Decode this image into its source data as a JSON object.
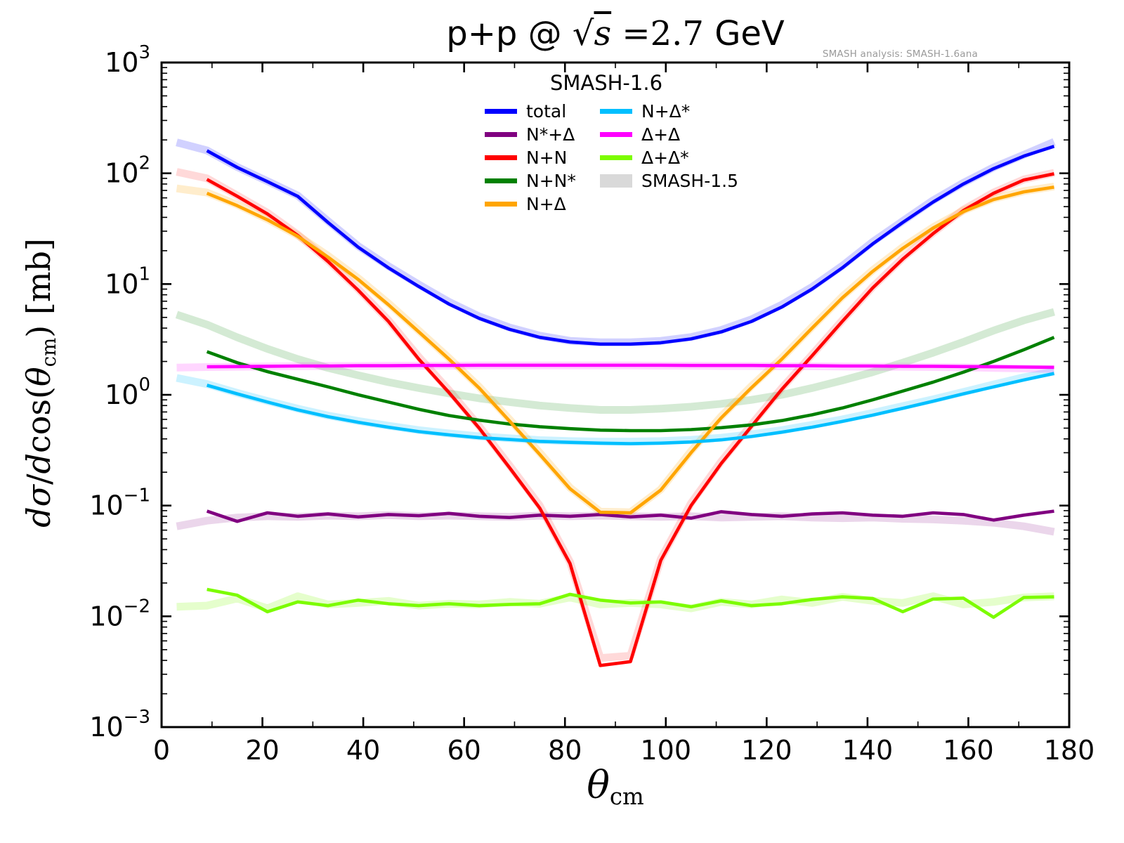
{
  "title_parts": [
    {
      "t": "p+p @ ",
      "cls": "sans"
    },
    {
      "t": "√",
      "cls": "rad"
    },
    {
      "t": "s",
      "cls": "radicand"
    },
    {
      "t": " =2.7 ",
      "cls": "rm"
    },
    {
      "t": "GeV",
      "cls": "sans"
    }
  ],
  "watermark": "SMASH analysis: SMASH-1.6ana",
  "axes": {
    "xlabel_parts": [
      {
        "t": "θ",
        "cls": "it"
      },
      {
        "t": "cm",
        "cls": "sub"
      }
    ],
    "ylabel_parts": [
      {
        "t": "d",
        "cls": "it"
      },
      {
        "t": "σ",
        "cls": "it"
      },
      {
        "t": "/",
        "cls": "rm"
      },
      {
        "t": "d",
        "cls": "it"
      },
      {
        "t": "cos(",
        "cls": "rm"
      },
      {
        "t": "θ",
        "cls": "it"
      },
      {
        "t": "cm",
        "cls": "sub"
      },
      {
        "t": ") [mb]",
        "cls": "rm"
      }
    ],
    "x_major_ticks": [
      0,
      20,
      40,
      60,
      80,
      100,
      120,
      140,
      160,
      180
    ],
    "x_minor_ticks": [
      10,
      30,
      50,
      70,
      90,
      110,
      130,
      150,
      170
    ],
    "y_tick_exponents": [
      3,
      2,
      1,
      0,
      -1,
      -2,
      -3
    ],
    "xlim": [
      0,
      180
    ],
    "ylim_exp": [
      -3,
      3
    ],
    "scale_y": "log",
    "grid": false
  },
  "legend": {
    "title": "SMASH-1.6",
    "entries": [
      {
        "name": "total",
        "label": "total",
        "color": "#0000ff",
        "col": 1,
        "type": "line"
      },
      {
        "name": "n-star-delta",
        "label": "N*+Δ",
        "color": "#800080",
        "col": 1,
        "type": "line"
      },
      {
        "name": "n-n",
        "label": "N+N",
        "color": "#ff0000",
        "col": 1,
        "type": "line"
      },
      {
        "name": "n-n-star",
        "label": "N+N*",
        "color": "#008000",
        "col": 1,
        "type": "line"
      },
      {
        "name": "n-delta",
        "label": "N+Δ",
        "color": "#ffa500",
        "col": 1,
        "type": "line"
      },
      {
        "name": "n-delta-star",
        "label": "N+Δ*",
        "color": "#00bfff",
        "col": 2,
        "type": "line"
      },
      {
        "name": "delta-delta",
        "label": "Δ+Δ",
        "color": "#ff00ff",
        "col": 2,
        "type": "line"
      },
      {
        "name": "delta-delta-star",
        "label": "Δ+Δ*",
        "color": "#7cfc00",
        "col": 2,
        "type": "line"
      },
      {
        "name": "smash-1-5",
        "label": "SMASH-1.5",
        "color": "#d9d9d9",
        "col": 2,
        "type": "patch"
      }
    ]
  },
  "chart_data": {
    "type": "line",
    "title": "p+p @ sqrt(s)=2.7 GeV",
    "xlabel": "theta_cm [deg]",
    "ylabel": "dsigma/dcos(theta_cm) [mb]",
    "x_axis": {
      "min": 0,
      "max": 180,
      "major_step": 20,
      "minor_step": 10
    },
    "y_axis": {
      "scale": "log",
      "min": 0.001,
      "max": 1000
    },
    "x_smash16": [
      9,
      15,
      21,
      27,
      33,
      39,
      45,
      51,
      57,
      63,
      69,
      75,
      81,
      87,
      93,
      99,
      105,
      111,
      117,
      123,
      129,
      135,
      141,
      147,
      153,
      159,
      165,
      171,
      177
    ],
    "x_smash15": [
      3,
      9,
      15,
      21,
      27,
      33,
      39,
      45,
      51,
      57,
      63,
      69,
      75,
      81,
      87,
      93,
      99,
      105,
      111,
      117,
      123,
      129,
      135,
      141,
      147,
      153,
      159,
      165,
      171,
      177
    ],
    "series": [
      {
        "name": "total",
        "label": "total",
        "color": "#0000ff",
        "values": [
          160,
          113,
          84,
          62,
          36,
          21.5,
          14,
          9.5,
          6.6,
          4.9,
          3.9,
          3.3,
          3.0,
          2.87,
          2.87,
          2.95,
          3.2,
          3.7,
          4.6,
          6.2,
          9.0,
          14,
          23,
          36,
          55,
          80,
          110,
          143,
          175
        ]
      },
      {
        "name": "n-star-delta",
        "label": "N*+Δ",
        "color": "#800080",
        "values": [
          0.089,
          0.072,
          0.086,
          0.08,
          0.084,
          0.079,
          0.083,
          0.081,
          0.085,
          0.08,
          0.078,
          0.082,
          0.08,
          0.083,
          0.079,
          0.082,
          0.077,
          0.088,
          0.083,
          0.08,
          0.084,
          0.086,
          0.082,
          0.08,
          0.086,
          0.083,
          0.074,
          0.082,
          0.089
        ]
      },
      {
        "name": "n-n",
        "label": "N+N",
        "color": "#ff0000",
        "values": [
          88,
          62,
          43,
          27.5,
          16,
          8.8,
          4.6,
          2.1,
          1.05,
          0.5,
          0.22,
          0.095,
          0.03,
          0.0036,
          0.0039,
          0.032,
          0.1,
          0.24,
          0.52,
          1.12,
          2.25,
          4.6,
          9.2,
          16.8,
          28.5,
          46,
          66,
          87,
          99
        ]
      },
      {
        "name": "n-n-star",
        "label": "N+N*",
        "color": "#008000",
        "values": [
          2.45,
          1.95,
          1.62,
          1.38,
          1.18,
          1.0,
          0.86,
          0.74,
          0.65,
          0.59,
          0.545,
          0.515,
          0.495,
          0.48,
          0.475,
          0.475,
          0.485,
          0.505,
          0.535,
          0.585,
          0.66,
          0.76,
          0.9,
          1.08,
          1.3,
          1.6,
          2.0,
          2.55,
          3.3
        ]
      },
      {
        "name": "n-delta",
        "label": "N+Δ",
        "color": "#ffa500",
        "values": [
          66,
          51,
          38,
          27,
          17.5,
          11,
          6.5,
          3.7,
          2.1,
          1.15,
          0.58,
          0.29,
          0.142,
          0.087,
          0.086,
          0.138,
          0.3,
          0.62,
          1.16,
          2.1,
          4.0,
          7.5,
          13,
          21,
          32,
          45,
          58,
          68,
          75
        ]
      },
      {
        "name": "n-delta-star",
        "label": "N+Δ*",
        "color": "#00bfff",
        "values": [
          1.22,
          1.02,
          0.86,
          0.73,
          0.635,
          0.565,
          0.51,
          0.465,
          0.435,
          0.41,
          0.395,
          0.38,
          0.372,
          0.366,
          0.362,
          0.366,
          0.375,
          0.392,
          0.42,
          0.46,
          0.51,
          0.575,
          0.655,
          0.755,
          0.875,
          1.02,
          1.18,
          1.36,
          1.56
        ]
      },
      {
        "name": "delta-delta",
        "label": "Δ+Δ",
        "color": "#ff00ff",
        "values": [
          1.79,
          1.8,
          1.81,
          1.82,
          1.82,
          1.83,
          1.83,
          1.84,
          1.84,
          1.85,
          1.85,
          1.85,
          1.85,
          1.85,
          1.85,
          1.85,
          1.84,
          1.84,
          1.84,
          1.83,
          1.83,
          1.82,
          1.82,
          1.81,
          1.81,
          1.8,
          1.79,
          1.78,
          1.77
        ]
      },
      {
        "name": "delta-delta-star",
        "label": "Δ+Δ*",
        "color": "#7cfc00",
        "values": [
          0.0175,
          0.0155,
          0.011,
          0.0135,
          0.0125,
          0.014,
          0.013,
          0.0125,
          0.013,
          0.0125,
          0.0128,
          0.013,
          0.0158,
          0.014,
          0.0132,
          0.0135,
          0.0122,
          0.0138,
          0.0125,
          0.013,
          0.0142,
          0.015,
          0.0145,
          0.011,
          0.0143,
          0.0146,
          0.0098,
          0.0148,
          0.015
        ]
      }
    ],
    "bands": [
      {
        "name": "total",
        "label": "total SMASH-1.5",
        "color": "rgba(0,0,255,0.18)",
        "values": [
          190,
          161,
          114,
          85,
          63,
          37,
          22,
          14.5,
          9.9,
          6.9,
          5.1,
          4.05,
          3.42,
          3.07,
          2.98,
          2.98,
          3.07,
          3.32,
          3.85,
          4.8,
          6.5,
          9.4,
          14.6,
          24,
          37,
          57,
          82,
          113,
          147,
          192
        ]
      },
      {
        "name": "n-star-delta",
        "label": "N*+Δ SMASH-1.5",
        "color": "rgba(128,0,128,0.16)",
        "values": [
          0.065,
          0.073,
          0.078,
          0.08,
          0.079,
          0.081,
          0.08,
          0.082,
          0.08,
          0.081,
          0.08,
          0.079,
          0.081,
          0.08,
          0.081,
          0.08,
          0.079,
          0.08,
          0.078,
          0.079,
          0.08,
          0.078,
          0.077,
          0.078,
          0.076,
          0.075,
          0.073,
          0.07,
          0.065,
          0.058
        ]
      },
      {
        "name": "n-n",
        "label": "N+N SMASH-1.5",
        "color": "rgba(255,0,0,0.15)",
        "values": [
          103,
          90,
          63,
          44,
          28,
          16.3,
          9.0,
          4.7,
          2.2,
          1.1,
          0.52,
          0.23,
          0.1,
          0.031,
          0.0042,
          0.0044,
          0.033,
          0.105,
          0.25,
          0.54,
          1.15,
          2.3,
          4.7,
          9.4,
          17.2,
          29,
          47,
          67,
          88,
          101
        ]
      },
      {
        "name": "n-n-star",
        "label": "N+N* SMASH-1.5",
        "color": "rgba(0,128,0,0.17)",
        "values": [
          5.3,
          4.3,
          3.3,
          2.6,
          2.1,
          1.75,
          1.5,
          1.3,
          1.15,
          1.03,
          0.93,
          0.86,
          0.8,
          0.76,
          0.73,
          0.73,
          0.75,
          0.78,
          0.83,
          0.9,
          1.0,
          1.15,
          1.35,
          1.6,
          1.95,
          2.4,
          3.0,
          3.8,
          4.7,
          5.6
        ]
      },
      {
        "name": "n-delta",
        "label": "N+Δ SMASH-1.5",
        "color": "rgba(255,165,0,0.2)",
        "values": [
          73,
          67,
          52,
          38.5,
          27.5,
          18,
          11.3,
          6.7,
          3.8,
          2.15,
          1.18,
          0.6,
          0.3,
          0.145,
          0.088,
          0.087,
          0.14,
          0.31,
          0.64,
          1.2,
          2.15,
          4.1,
          7.7,
          13.3,
          21.5,
          32.5,
          46,
          59,
          69,
          76
        ]
      },
      {
        "name": "n-delta-star",
        "label": "N+Δ* SMASH-1.5",
        "color": "rgba(0,191,255,0.2)",
        "values": [
          1.42,
          1.25,
          1.04,
          0.88,
          0.75,
          0.65,
          0.58,
          0.525,
          0.48,
          0.448,
          0.422,
          0.405,
          0.39,
          0.382,
          0.378,
          0.378,
          0.382,
          0.392,
          0.41,
          0.44,
          0.48,
          0.535,
          0.6,
          0.685,
          0.79,
          0.91,
          1.06,
          1.24,
          1.44,
          1.62
        ]
      },
      {
        "name": "delta-delta",
        "label": "Δ+Δ SMASH-1.5",
        "color": "rgba(255,0,255,0.16)",
        "values": [
          1.76,
          1.78,
          1.79,
          1.8,
          1.81,
          1.82,
          1.82,
          1.83,
          1.83,
          1.83,
          1.84,
          1.84,
          1.84,
          1.84,
          1.84,
          1.84,
          1.83,
          1.83,
          1.82,
          1.82,
          1.81,
          1.81,
          1.8,
          1.79,
          1.79,
          1.78,
          1.77,
          1.75,
          1.73,
          1.71
        ]
      },
      {
        "name": "delta-delta-star",
        "label": "Δ+Δ* SMASH-1.5",
        "color": "rgba(124,252,0,0.2)",
        "values": [
          0.0122,
          0.0125,
          0.0145,
          0.0118,
          0.0152,
          0.0128,
          0.0132,
          0.0138,
          0.0125,
          0.013,
          0.0128,
          0.0135,
          0.013,
          0.0148,
          0.0128,
          0.0132,
          0.0128,
          0.0118,
          0.0135,
          0.0128,
          0.0142,
          0.0132,
          0.015,
          0.0138,
          0.0132,
          0.0152,
          0.0128,
          0.0135,
          0.0148,
          0.0152
        ]
      }
    ]
  }
}
